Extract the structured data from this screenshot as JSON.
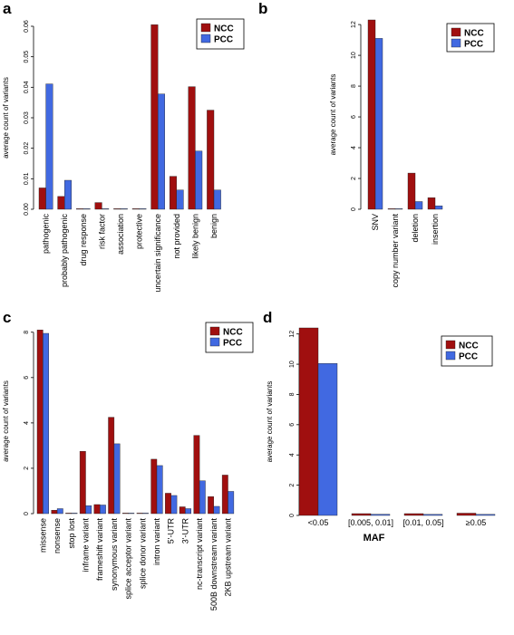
{
  "colors": {
    "NCC": "#a00f0f",
    "PCC": "#4169e1"
  },
  "chart_data": [
    {
      "panel": "a",
      "type": "bar",
      "ylabel": "average count of variants",
      "xlabel": "",
      "ylim": [
        0,
        0.06
      ],
      "yticks": [
        "0.00",
        "0.01",
        "0.02",
        "0.03",
        "0.04",
        "0.05",
        "0.06"
      ],
      "categories": [
        "pathogenic",
        "probably pathogenic",
        "drug response",
        "risk factor",
        "association",
        "protective",
        "uncertain significance",
        "not provided",
        "likely benign",
        "benign"
      ],
      "series": [
        {
          "name": "NCC",
          "values": [
            0.007,
            0.0042,
            0,
            0.0022,
            0,
            0,
            0.0605,
            0.0108,
            0.0402,
            0.0325
          ]
        },
        {
          "name": "PCC",
          "values": [
            0.0411,
            0.0095,
            0,
            0,
            0,
            0,
            0.0378,
            0.0063,
            0.0191,
            0.0063
          ]
        }
      ],
      "legend": "top-right"
    },
    {
      "panel": "b",
      "type": "bar",
      "ylabel": "average count of variants",
      "xlabel": "",
      "ylim": [
        0,
        12.3
      ],
      "yticks": [
        "0",
        "2",
        "4",
        "6",
        "8",
        "10",
        "12"
      ],
      "categories": [
        "SNV",
        "copy number variant",
        "deletion",
        "insertion"
      ],
      "series": [
        {
          "name": "NCC",
          "values": [
            12.3,
            0.03,
            2.35,
            0.75
          ]
        },
        {
          "name": "PCC",
          "values": [
            11.1,
            0,
            0.5,
            0.22
          ]
        }
      ],
      "legend": "top-right"
    },
    {
      "panel": "c",
      "type": "bar",
      "ylabel": "average count of variants",
      "xlabel": "",
      "ylim": [
        0,
        8.15
      ],
      "yticks": [
        "0",
        "2",
        "4",
        "6",
        "8"
      ],
      "categories": [
        "missense",
        "nonsense",
        "stop lost",
        "inframe variant",
        "frameshift variant",
        "synonymous variant",
        "splice acceptor variant",
        "splice donor variant",
        "intron variant",
        "5'-UTR",
        "3'-UTR",
        "nc-transcript variant",
        "500B downstream variant",
        "2KB upstream variant"
      ],
      "series": [
        {
          "name": "NCC",
          "values": [
            8.1,
            0.15,
            0.02,
            2.75,
            0.4,
            4.25,
            0.02,
            0.02,
            2.4,
            0.9,
            0.3,
            3.45,
            0.75,
            1.7
          ]
        },
        {
          "name": "PCC",
          "values": [
            7.95,
            0.22,
            0.02,
            0.35,
            0.38,
            3.08,
            0.02,
            0.02,
            2.12,
            0.8,
            0.22,
            1.45,
            0.32,
            0.98
          ]
        }
      ],
      "legend": "top-right"
    },
    {
      "panel": "d",
      "type": "bar",
      "ylabel": "average count of variants",
      "xlabel": "MAF",
      "ylim": [
        0,
        12.4
      ],
      "yticks": [
        "0",
        "2",
        "4",
        "6",
        "8",
        "10",
        "12"
      ],
      "categories": [
        "<0.05",
        "[0.005, 0.01]",
        "[0.01, 0.05]",
        "≥0.05"
      ],
      "series": [
        {
          "name": "NCC",
          "values": [
            12.4,
            0.12,
            0.12,
            0.15
          ]
        },
        {
          "name": "PCC",
          "values": [
            10.05,
            0.08,
            0.07,
            0.07
          ]
        }
      ],
      "legend": "top-right"
    }
  ]
}
